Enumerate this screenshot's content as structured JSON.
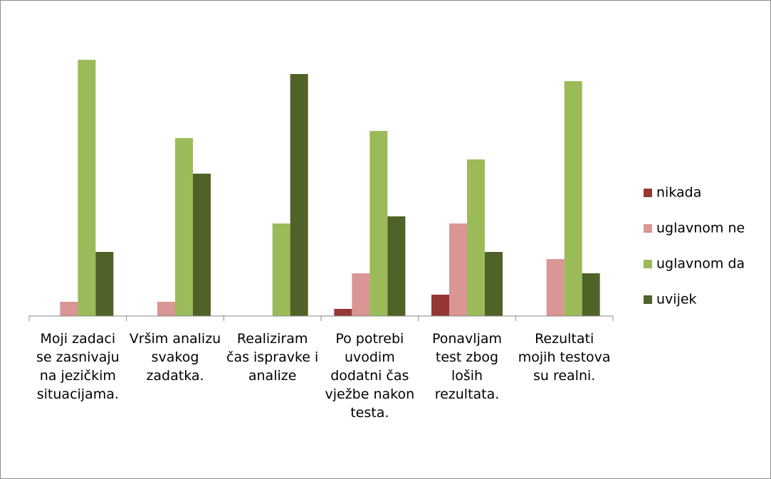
{
  "chart_data": {
    "type": "bar",
    "categories": [
      "Moji zadaci se zasnivaju na jezičkim situacijama.",
      "Vršim analizu svakog zadatka.",
      "Realiziram čas ispravke i analize",
      "Po potrebi uvodim dodatni čas vježbe nakon testa.",
      "Ponavljam test zbog loših rezultata.",
      "Rezultati mojih testova su realni."
    ],
    "series": [
      {
        "name": "nikada",
        "color": "#953735",
        "values": [
          0,
          0,
          0,
          1,
          3,
          0
        ]
      },
      {
        "name": "uglavnom ne",
        "color": "#d99694",
        "values": [
          2,
          2,
          0,
          6,
          13,
          8
        ]
      },
      {
        "name": "uglavnom da",
        "color": "#9bbb59",
        "values": [
          36,
          25,
          13,
          26,
          22,
          33
        ]
      },
      {
        "name": "uvijek",
        "color": "#4f6228",
        "values": [
          9,
          20,
          34,
          14,
          9,
          6
        ]
      }
    ],
    "ylim": [
      0,
      40
    ],
    "legend": "right"
  }
}
